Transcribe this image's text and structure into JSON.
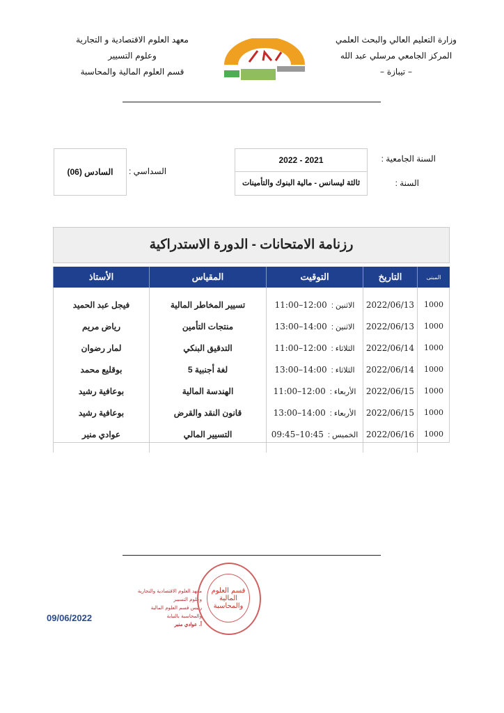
{
  "header": {
    "right_lines": [
      "وزارة التعليم العالي والبحث العلمي",
      "المركز الجامعي مرسلي عبد الله",
      "– تيبازة –"
    ],
    "left_lines": [
      "معهد العلوم الاقتصادية و التجارية",
      "وعلوم التسيير",
      "قسم العلوم المالية والمحاسبة"
    ],
    "logo_text": "المركز الجامعي مرسلي عبد الله تيبازة"
  },
  "info": {
    "academic_year_label": "السنة الجامعية :",
    "academic_year_value": "2022 - 2021",
    "year_label": "السنة :",
    "year_value": "ثالثة ليسانس - مالية البنوك والتأمينات",
    "semester_label": "السداسي :",
    "semester_value": "السادس (06)"
  },
  "title": "رزنامة الامتحانات - الدورة الاستدراكية",
  "table": {
    "headers": [
      "المبنى",
      "التاريخ",
      "التوقيت",
      "المقياس",
      "الأستاذ"
    ],
    "rows": [
      {
        "building": "1000",
        "date": "2022/06/13",
        "day": "الاثنين :",
        "time": "12:00–11:00",
        "module": "تسيير المخاطر المالية",
        "professor": "فيجل عبد الحميد"
      },
      {
        "building": "1000",
        "date": "2022/06/13",
        "day": "الاثنين :",
        "time": "14:00–13:00",
        "module": "منتجات التأمين",
        "professor": "رياض مريم"
      },
      {
        "building": "1000",
        "date": "2022/06/14",
        "day": "الثلاثاء :",
        "time": "12:00–11:00",
        "module": "التدقيق البنكي",
        "professor": "لمار رضوان"
      },
      {
        "building": "1000",
        "date": "2022/06/14",
        "day": "الثلاثاء :",
        "time": "14:00–13:00",
        "module": "لغة أجنبية 5",
        "professor": "بوقليع محمد"
      },
      {
        "building": "1000",
        "date": "2022/06/15",
        "day": "الأربعاء :",
        "time": "12:00–11:00",
        "module": "الهندسة المالية",
        "professor": "بوعافية رشيد"
      },
      {
        "building": "1000",
        "date": "2022/06/15",
        "day": "الأربعاء :",
        "time": "14:00–13:00",
        "module": "قانون النقد والقرض",
        "professor": "بوعافية رشيد"
      },
      {
        "building": "1000",
        "date": "2022/06/16",
        "day": "الخميس :",
        "time": "10:45–09:45",
        "module": "التسيير المالي",
        "professor": "عوادي منير"
      }
    ]
  },
  "footer": {
    "date": "09/06/2022",
    "signature_lines": [
      "معهد العلوم الاقتصادية والتجارية وعلوم التسيير",
      "رئيس قسم العلوم المالية",
      "والمحاسبة بالنيابة",
      "أ. عوادي منير"
    ],
    "stamp_text": "قسم العلوم المالية والمحاسبة"
  },
  "colors": {
    "header_blue": "#1f3f8f",
    "date_blue": "#2a4a8a",
    "stamp_red": "#c0392b",
    "logo_orange": "#f0a020",
    "logo_green": "#4caf50"
  }
}
